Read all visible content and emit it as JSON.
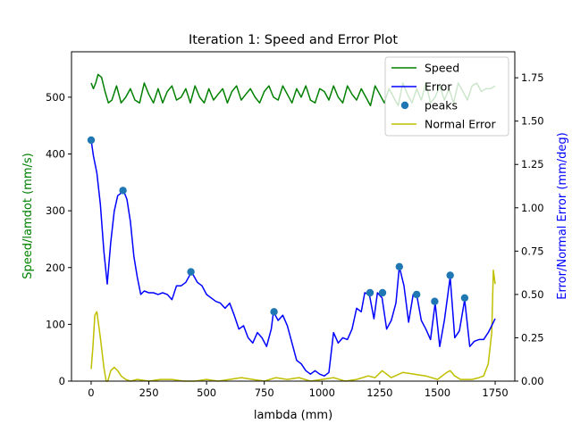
{
  "chart_data": {
    "type": "line",
    "title": "Iteration 1: Speed and Error Plot",
    "xlabel": "lambda (mm)",
    "ylabel_left": "Speed/lamdot (mm/s)",
    "ylabel_right": "Error/Normal Error (mm/deg)",
    "xlim": [
      -85,
      1835
    ],
    "ylim_left": [
      0,
      580
    ],
    "ylim_right": [
      0,
      1.9
    ],
    "x_ticks": [
      0,
      250,
      500,
      750,
      1000,
      1250,
      1500,
      1750
    ],
    "x_tick_labels": [
      "0",
      "250",
      "500",
      "750",
      "1000",
      "1250",
      "1500",
      "1750"
    ],
    "y_left_ticks": [
      0,
      100,
      200,
      300,
      400,
      500
    ],
    "y_left_tick_labels": [
      "0",
      "100",
      "200",
      "300",
      "400",
      "500"
    ],
    "y_right_ticks": [
      0,
      0.25,
      0.5,
      0.75,
      1.0,
      1.25,
      1.5,
      1.75
    ],
    "y_right_tick_labels": [
      "0.00",
      "0.25",
      "0.50",
      "0.75",
      "1.00",
      "1.25",
      "1.50",
      "1.75"
    ],
    "grid": false,
    "legend_position": "top-right",
    "colors": {
      "speed": "#008000",
      "error": "#0000ff",
      "peaks": "#1f77b4",
      "normal_error": "#bfbf00",
      "left_label": "#008000",
      "right_label": "#0000ff"
    },
    "series": [
      {
        "name": "Speed",
        "axis": "left",
        "kind": "line",
        "x": [
          0,
          10,
          20,
          30,
          45,
          60,
          75,
          90,
          110,
          130,
          150,
          170,
          190,
          210,
          230,
          250,
          270,
          290,
          310,
          330,
          350,
          370,
          390,
          410,
          430,
          450,
          470,
          490,
          510,
          530,
          550,
          570,
          590,
          610,
          630,
          650,
          670,
          690,
          710,
          730,
          750,
          770,
          790,
          810,
          830,
          850,
          870,
          890,
          910,
          930,
          950,
          970,
          990,
          1010,
          1030,
          1050,
          1070,
          1090,
          1110,
          1130,
          1150,
          1170,
          1190,
          1210,
          1230,
          1250,
          1270,
          1290,
          1310,
          1330,
          1350,
          1370,
          1390,
          1410,
          1430,
          1450,
          1470,
          1490,
          1510,
          1530,
          1550,
          1570,
          1590,
          1610,
          1630,
          1650,
          1670,
          1690,
          1710,
          1730,
          1750
        ],
        "values": [
          525,
          515,
          525,
          540,
          535,
          510,
          490,
          495,
          520,
          490,
          500,
          515,
          495,
          490,
          525,
          505,
          490,
          515,
          490,
          510,
          520,
          495,
          500,
          515,
          490,
          520,
          500,
          490,
          515,
          495,
          505,
          515,
          490,
          510,
          520,
          495,
          505,
          515,
          500,
          490,
          510,
          520,
          500,
          495,
          520,
          505,
          490,
          515,
          500,
          520,
          495,
          490,
          515,
          510,
          495,
          520,
          500,
          490,
          520,
          505,
          495,
          515,
          500,
          485,
          520,
          505,
          490,
          515,
          500,
          485,
          525,
          505,
          490,
          515,
          495,
          525,
          490,
          500,
          520,
          495,
          515,
          490,
          525,
          510,
          495,
          520,
          525,
          510,
          515,
          515,
          520
        ]
      },
      {
        "name": "Error",
        "axis": "right",
        "kind": "line",
        "x": [
          0,
          10,
          25,
          40,
          55,
          70,
          85,
          100,
          115,
          125,
          140,
          155,
          170,
          185,
          200,
          215,
          230,
          250,
          270,
          290,
          310,
          330,
          350,
          370,
          390,
          410,
          435,
          460,
          480,
          500,
          520,
          540,
          560,
          580,
          600,
          620,
          640,
          660,
          680,
          700,
          720,
          740,
          760,
          780,
          790,
          810,
          830,
          850,
          870,
          890,
          910,
          930,
          950,
          970,
          990,
          1010,
          1030,
          1050,
          1070,
          1090,
          1110,
          1130,
          1150,
          1170,
          1185,
          1205,
          1225,
          1240,
          1260,
          1280,
          1300,
          1320,
          1335,
          1355,
          1375,
          1395,
          1410,
          1430,
          1450,
          1470,
          1490,
          1510,
          1530,
          1555,
          1575,
          1595,
          1618,
          1640,
          1660,
          1680,
          1700,
          1720,
          1735,
          1750
        ],
        "values": [
          1.39,
          1.3,
          1.2,
          1.02,
          0.75,
          0.56,
          0.8,
          0.98,
          1.07,
          1.08,
          1.1,
          1.05,
          0.92,
          0.72,
          0.6,
          0.5,
          0.52,
          0.51,
          0.51,
          0.5,
          0.51,
          0.5,
          0.47,
          0.55,
          0.55,
          0.57,
          0.63,
          0.57,
          0.55,
          0.5,
          0.48,
          0.46,
          0.45,
          0.42,
          0.45,
          0.38,
          0.3,
          0.32,
          0.25,
          0.22,
          0.28,
          0.25,
          0.2,
          0.3,
          0.4,
          0.35,
          0.38,
          0.32,
          0.22,
          0.12,
          0.1,
          0.06,
          0.04,
          0.06,
          0.04,
          0.03,
          0.05,
          0.28,
          0.22,
          0.25,
          0.24,
          0.3,
          0.42,
          0.4,
          0.51,
          0.5,
          0.36,
          0.51,
          0.48,
          0.3,
          0.35,
          0.45,
          0.66,
          0.55,
          0.34,
          0.5,
          0.5,
          0.35,
          0.3,
          0.24,
          0.45,
          0.2,
          0.35,
          0.6,
          0.25,
          0.29,
          0.47,
          0.2,
          0.23,
          0.24,
          0.24,
          0.28,
          0.32,
          0.36
        ]
      },
      {
        "name": "peaks",
        "axis": "right",
        "kind": "scatter",
        "x": [
          0,
          138,
          432,
          792,
          1208,
          1262,
          1335,
          1410,
          1488,
          1555,
          1618
        ],
        "values": [
          1.39,
          1.1,
          0.63,
          0.4,
          0.51,
          0.51,
          0.66,
          0.5,
          0.46,
          0.61,
          0.48
        ]
      },
      {
        "name": "Normal Error",
        "axis": "right",
        "kind": "line",
        "x": [
          0,
          8,
          16,
          25,
          40,
          55,
          65,
          72,
          85,
          100,
          115,
          130,
          150,
          170,
          200,
          250,
          300,
          350,
          400,
          450,
          500,
          550,
          600,
          650,
          700,
          750,
          800,
          850,
          900,
          950,
          1000,
          1050,
          1100,
          1150,
          1200,
          1230,
          1260,
          1300,
          1350,
          1400,
          1450,
          1500,
          1540,
          1555,
          1575,
          1600,
          1650,
          1680,
          1700,
          1720,
          1735,
          1742,
          1750
        ],
        "values": [
          0.07,
          0.2,
          0.38,
          0.4,
          0.25,
          0.08,
          0.0,
          0.0,
          0.06,
          0.08,
          0.06,
          0.03,
          0.01,
          0.0,
          0.01,
          0.0,
          0.01,
          0.01,
          0.0,
          0.0,
          0.01,
          0.0,
          0.01,
          0.02,
          0.01,
          0.0,
          0.02,
          0.01,
          0.02,
          0.0,
          0.01,
          0.02,
          0.0,
          0.01,
          0.03,
          0.02,
          0.06,
          0.02,
          0.05,
          0.04,
          0.03,
          0.01,
          0.05,
          0.06,
          0.03,
          0.01,
          0.01,
          0.02,
          0.03,
          0.1,
          0.28,
          0.64,
          0.56
        ]
      }
    ],
    "legend": [
      "Speed",
      "Error",
      "peaks",
      "Normal Error"
    ]
  }
}
